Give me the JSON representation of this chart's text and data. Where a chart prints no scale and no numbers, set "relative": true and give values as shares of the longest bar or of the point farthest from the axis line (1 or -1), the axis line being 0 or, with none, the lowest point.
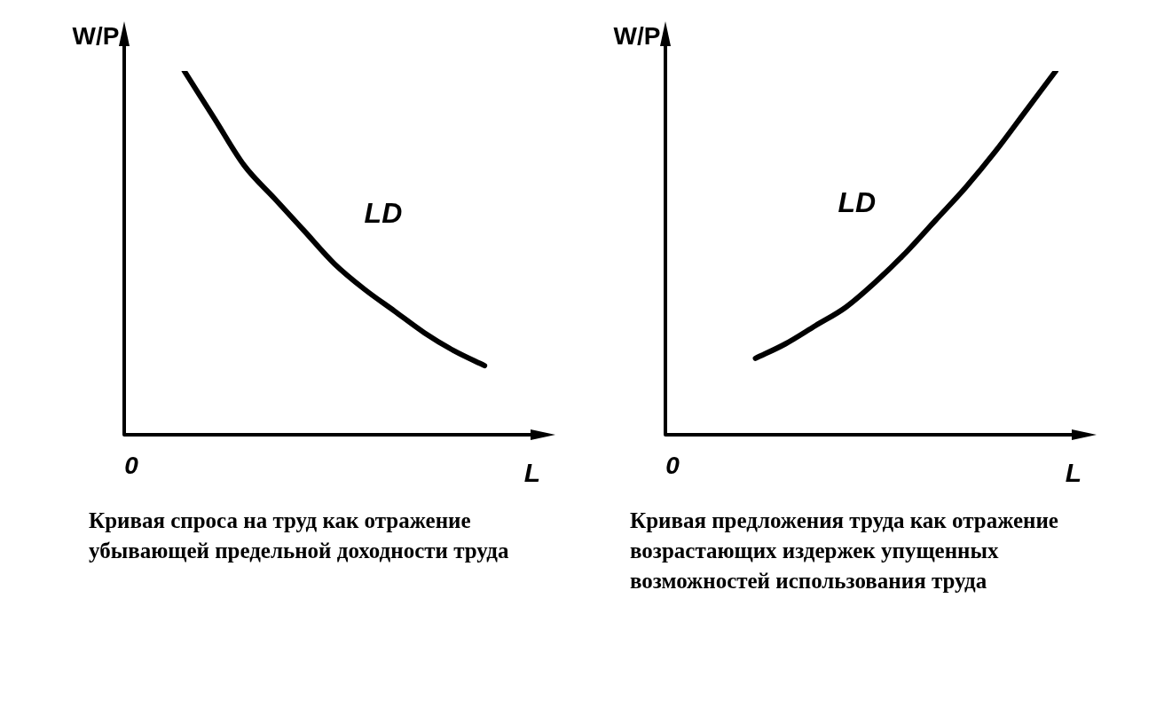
{
  "chart_data": [
    {
      "type": "line",
      "relative": true,
      "xlabel": "L",
      "ylabel": "W/P",
      "categories": [
        null,
        null,
        null,
        null,
        null,
        null,
        null,
        null,
        null,
        null,
        null,
        null,
        null,
        null
      ],
      "series": [
        {
          "name": "LD",
          "color": "#000000",
          "values": [
            null,
            null,
            1,
            0.87,
            0.74,
            0.65,
            0.56,
            0.47,
            0.4,
            0.34,
            0.28,
            0.23,
            0.19,
            null
          ]
        }
      ],
      "marker": "none",
      "line_style": "solid",
      "legend": false,
      "subtitle": "Кривая спроса на труд как отражение убывающей предельной доходности труда",
      "annotations": [
        "0"
      ]
    },
    {
      "type": "line",
      "relative": true,
      "xlabel": "L",
      "ylabel": "W/P",
      "categories": [
        null,
        null,
        null,
        null,
        null,
        null,
        null,
        null,
        null,
        null,
        null,
        null,
        null,
        null
      ],
      "series": [
        {
          "name": "LD",
          "color": "#000000",
          "values": [
            null,
            null,
            null,
            0.21,
            0.25,
            0.3,
            0.35,
            0.42,
            0.5,
            0.59,
            0.68,
            0.78,
            0.89,
            1
          ]
        }
      ],
      "marker": "none",
      "line_style": "solid",
      "legend": false,
      "subtitle": "Кривая предложения труда как отражение возрастающих издержек упущенных возможностей использования труда",
      "annotations": [
        "0"
      ]
    }
  ]
}
